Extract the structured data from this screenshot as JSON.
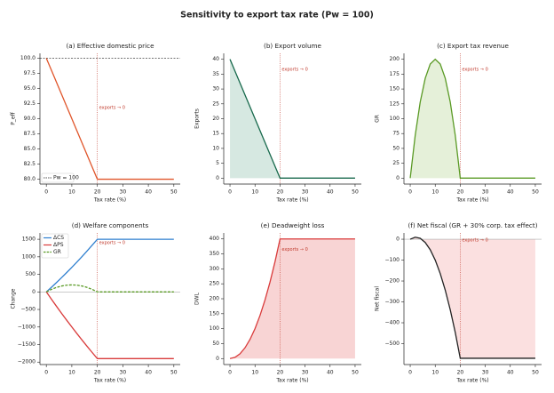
{
  "title": "Sensitivity to export tax rate (Pw = 100)",
  "chart_data": [
    {
      "type": "line",
      "title": "(a) Effective domestic price",
      "xlabel": "Tax rate (%)",
      "ylabel": "P_eff",
      "x": [
        0,
        2,
        4,
        6,
        8,
        10,
        12,
        14,
        16,
        18,
        20,
        50
      ],
      "series": [
        {
          "color": "#e0552a",
          "values": [
            100,
            98,
            96,
            94,
            92,
            90,
            88,
            86,
            84,
            82,
            80,
            80
          ]
        }
      ],
      "xlim": [
        -2.5,
        52.5
      ],
      "xticks": [
        0,
        10,
        20,
        30,
        40,
        50
      ],
      "ylim": [
        79.2,
        100.8
      ],
      "yticks": [
        {
          "value": 80,
          "label": "80.0"
        },
        82.5,
        {
          "value": 85,
          "label": "85.0"
        },
        87.5,
        {
          "value": 90,
          "label": "90.0"
        },
        92.5,
        {
          "value": 95,
          "label": "95.0"
        },
        97.5,
        {
          "value": 100,
          "label": "100.0"
        }
      ],
      "hline": {
        "value": 100,
        "color": "#222",
        "dashed": true,
        "label": "Pw = 100"
      },
      "vline": 20,
      "annotation": "exports → 0"
    },
    {
      "type": "area",
      "title": "(b) Export volume",
      "xlabel": "Tax rate (%)",
      "ylabel": "Exports",
      "x": [
        0,
        2,
        4,
        6,
        8,
        10,
        12,
        14,
        16,
        18,
        20,
        50
      ],
      "series": [
        {
          "color": "#17694c",
          "fill": "#d6e8e1",
          "values": [
            40,
            36,
            32,
            28,
            24,
            20,
            16,
            12,
            8,
            4,
            0,
            0
          ]
        }
      ],
      "xlim": [
        -2.5,
        52.5
      ],
      "xticks": [
        0,
        10,
        20,
        30,
        40,
        50
      ],
      "ylim": [
        -2,
        42
      ],
      "yticks": [
        0,
        5,
        10,
        15,
        20,
        25,
        30,
        35,
        40
      ],
      "vline": 20,
      "annotation": "exports → 0"
    },
    {
      "type": "area",
      "title": "(c) Export tax revenue",
      "xlabel": "Tax rate (%)",
      "ylabel": "GR",
      "x": [
        0,
        2,
        4,
        6,
        8,
        10,
        12,
        14,
        16,
        18,
        20,
        50
      ],
      "series": [
        {
          "color": "#5a9a25",
          "fill": "#e5f0d9",
          "values": [
            0,
            72,
            128,
            168,
            192,
            200,
            192,
            168,
            128,
            72,
            0,
            0
          ]
        }
      ],
      "xlim": [
        -2.5,
        52.5
      ],
      "xticks": [
        0,
        10,
        20,
        30,
        40,
        50
      ],
      "ylim": [
        -10,
        210
      ],
      "yticks": [
        0,
        25,
        50,
        75,
        100,
        125,
        150,
        175,
        200
      ],
      "vline": 20,
      "annotation": "exports → 0"
    },
    {
      "type": "line",
      "title": "(d) Welfare components",
      "xlabel": "Tax rate (%)",
      "ylabel": "Change",
      "x": [
        0,
        2,
        4,
        6,
        8,
        10,
        12,
        14,
        16,
        18,
        20,
        50
      ],
      "series": [
        {
          "name": "ΔCS",
          "color": "#2f7fcf",
          "values": [
            0,
            132,
            268,
            408,
            552,
            700,
            852,
            1008,
            1168,
            1332,
            1500,
            1500
          ]
        },
        {
          "name": "ΔPS",
          "color": "#d93b3b",
          "values": [
            0,
            -208,
            -412,
            -612,
            -808,
            -1000,
            -1188,
            -1372,
            -1552,
            -1728,
            -1900,
            -1900
          ]
        },
        {
          "name": "GR",
          "color": "#5a9a25",
          "dashed": true,
          "values": [
            0,
            72,
            128,
            168,
            192,
            200,
            192,
            168,
            128,
            72,
            0,
            0
          ]
        }
      ],
      "xlim": [
        -2.5,
        52.5
      ],
      "xticks": [
        0,
        10,
        20,
        30,
        40,
        50
      ],
      "ylim": [
        -2070,
        1680
      ],
      "yticks": [
        {
          "value": -2000,
          "label": "−2000"
        },
        {
          "value": -1500,
          "label": "−1500"
        },
        {
          "value": -1000,
          "label": "−1000"
        },
        {
          "value": -500,
          "label": "−500"
        },
        0,
        500,
        1000,
        1500
      ],
      "hline": {
        "value": 0,
        "color": "#aaa"
      },
      "vline": 20,
      "annotation": "exports → 0"
    },
    {
      "type": "area",
      "title": "(e) Deadweight loss",
      "xlabel": "Tax rate (%)",
      "ylabel": "DWL",
      "x": [
        0,
        2,
        4,
        6,
        8,
        10,
        12,
        14,
        16,
        18,
        20,
        50
      ],
      "series": [
        {
          "color": "#d93b3b",
          "fill": "#f8d4d4",
          "values": [
            0,
            4,
            16,
            36,
            64,
            100,
            144,
            196,
            256,
            324,
            400,
            400
          ]
        }
      ],
      "xlim": [
        -2.5,
        52.5
      ],
      "xticks": [
        0,
        10,
        20,
        30,
        40,
        50
      ],
      "ylim": [
        -20,
        420
      ],
      "yticks": [
        0,
        50,
        100,
        150,
        200,
        250,
        300,
        350,
        400
      ],
      "vline": 20,
      "annotation": "exports → 0"
    },
    {
      "type": "area",
      "title": "(f) Net fiscal (GR + 30% corp. tax effect)",
      "xlabel": "Tax rate (%)",
      "ylabel": "Net fiscal",
      "x": [
        0,
        2,
        4,
        6,
        8,
        10,
        12,
        14,
        16,
        18,
        20,
        50
      ],
      "series": [
        {
          "color": "#222222",
          "fill": "#fbe0e0",
          "values": [
            0,
            9.6,
            4.4,
            -15.6,
            -50.4,
            -100,
            -164.4,
            -243.6,
            -337.6,
            -446.4,
            -570,
            -570
          ]
        }
      ],
      "xlim": [
        -2.5,
        52.5
      ],
      "xticks": [
        0,
        10,
        20,
        30,
        40,
        50
      ],
      "ylim": [
        -600,
        30
      ],
      "yticks": [
        {
          "value": -500,
          "label": "−500"
        },
        {
          "value": -400,
          "label": "−400"
        },
        {
          "value": -300,
          "label": "−300"
        },
        {
          "value": -200,
          "label": "−200"
        },
        {
          "value": -100,
          "label": "−100"
        },
        0
      ],
      "hline": {
        "value": 0,
        "color": "#aaa"
      },
      "vline": 20,
      "annotation": "exports → 0"
    }
  ]
}
